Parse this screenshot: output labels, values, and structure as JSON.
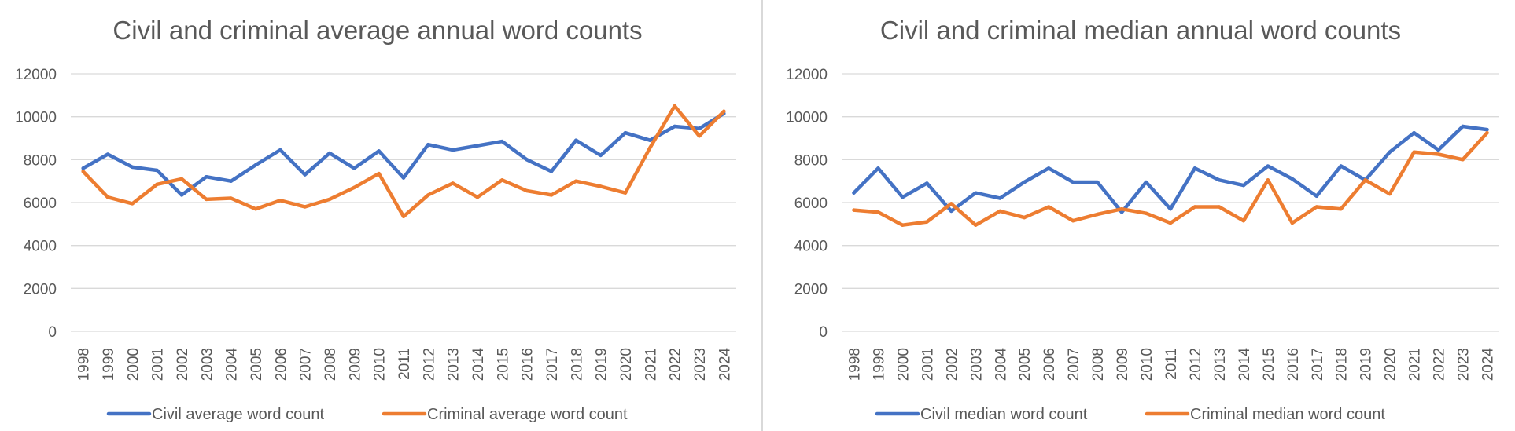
{
  "colors": {
    "civil": "#4472C4",
    "criminal": "#ED7D31",
    "grid": "#d9d9d9",
    "text": "#595959"
  },
  "chart_data": [
    {
      "type": "line",
      "title": "Civil and criminal average annual word counts",
      "xlabel": "",
      "ylabel": "",
      "ylim": [
        0,
        12000
      ],
      "yticks": [
        0,
        2000,
        4000,
        6000,
        8000,
        10000,
        12000
      ],
      "grid": true,
      "legend": "bottom",
      "categories": [
        "1998",
        "1999",
        "2000",
        "2001",
        "2002",
        "2003",
        "2004",
        "2005",
        "2006",
        "2007",
        "2008",
        "2009",
        "2010",
        "2011",
        "2012",
        "2013",
        "2014",
        "2015",
        "2016",
        "2017",
        "2018",
        "2019",
        "2020",
        "2021",
        "2022",
        "2023",
        "2024"
      ],
      "series": [
        {
          "name": "Civil average word count",
          "color": "#4472C4",
          "values": [
            7600,
            8250,
            7650,
            7500,
            6350,
            7200,
            7000,
            7750,
            8450,
            7300,
            8300,
            7600,
            8400,
            7150,
            8700,
            8450,
            8650,
            8850,
            8000,
            7450,
            8900,
            8200,
            9250,
            8900,
            9550,
            9450,
            10150
          ]
        },
        {
          "name": "Criminal average word count",
          "color": "#ED7D31",
          "values": [
            7450,
            6250,
            5950,
            6850,
            7100,
            6150,
            6200,
            5700,
            6100,
            5800,
            6150,
            6700,
            7350,
            5350,
            6350,
            6900,
            6250,
            7050,
            6550,
            6350,
            7000,
            6750,
            6450,
            8550,
            10500,
            9100,
            10250
          ]
        }
      ]
    },
    {
      "type": "line",
      "title": "Civil and criminal median annual word counts",
      "xlabel": "",
      "ylabel": "",
      "ylim": [
        0,
        12000
      ],
      "yticks": [
        0,
        2000,
        4000,
        6000,
        8000,
        10000,
        12000
      ],
      "grid": true,
      "legend": "bottom",
      "categories": [
        "1998",
        "1999",
        "2000",
        "2001",
        "2002",
        "2003",
        "2004",
        "2005",
        "2006",
        "2007",
        "2008",
        "2009",
        "2010",
        "2011",
        "2012",
        "2013",
        "2014",
        "2015",
        "2016",
        "2017",
        "2018",
        "2019",
        "2020",
        "2021",
        "2022",
        "2023",
        "2024"
      ],
      "series": [
        {
          "name": "Civil median word count",
          "color": "#4472C4",
          "values": [
            6450,
            7600,
            6250,
            6900,
            5600,
            6450,
            6200,
            6950,
            7600,
            6950,
            6950,
            5550,
            6950,
            5700,
            7600,
            7050,
            6800,
            7700,
            7100,
            6300,
            7700,
            7050,
            8350,
            9250,
            8450,
            9550,
            9400
          ]
        },
        {
          "name": "Criminal median word count",
          "color": "#ED7D31",
          "values": [
            5650,
            5550,
            4950,
            5100,
            5950,
            4950,
            5600,
            5300,
            5800,
            5150,
            5450,
            5700,
            5500,
            5050,
            5800,
            5800,
            5150,
            7050,
            5050,
            5800,
            5700,
            7050,
            6400,
            8350,
            8250,
            8000,
            9250
          ]
        }
      ]
    }
  ]
}
